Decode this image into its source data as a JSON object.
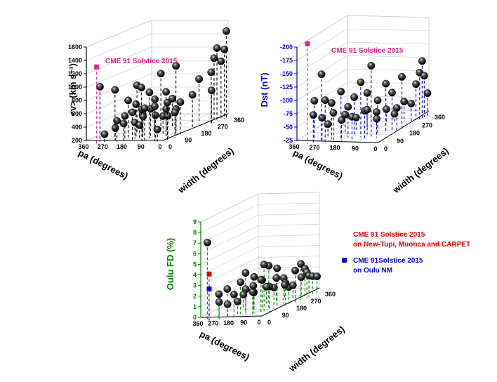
{
  "chart_data": [
    {
      "type": "scatter",
      "projection": "3d",
      "xlabel": "pa (degrees)",
      "ylabel": "width (degrees)",
      "zlabel": "<v> (km s⁻¹)",
      "zlabel_color": "#000000",
      "xlim": [
        0,
        360
      ],
      "ylim": [
        0,
        360
      ],
      "zlim": [
        200,
        1600
      ],
      "xticks": [
        "0",
        "90",
        "180",
        "270",
        "360"
      ],
      "yticks": [
        "0",
        "90",
        "180",
        "270",
        "360"
      ],
      "zticks": [
        "200",
        "400",
        "600",
        "800",
        "1000",
        "1200",
        "1400",
        "1600"
      ],
      "tick_color": "#000000",
      "drop_color": "#000000",
      "grid": true,
      "series": [
        {
          "marker": "sphere",
          "color": "#111111",
          "points": [
            [
              300,
              30,
              260
            ],
            [
              275,
              60,
              320
            ],
            [
              250,
              40,
              450
            ],
            [
              230,
              60,
              500
            ],
            [
              210,
              30,
              420
            ],
            [
              190,
              55,
              560
            ],
            [
              240,
              90,
              700
            ],
            [
              220,
              110,
              620
            ],
            [
              200,
              80,
              380
            ],
            [
              180,
              100,
              480
            ],
            [
              160,
              120,
              540
            ],
            [
              170,
              70,
              350
            ],
            [
              150,
              60,
              600
            ],
            [
              140,
              90,
              820
            ],
            [
              120,
              40,
              640
            ],
            [
              110,
              130,
              420
            ],
            [
              95,
              70,
              500
            ],
            [
              80,
              50,
              760
            ],
            [
              70,
              100,
              560
            ],
            [
              60,
              40,
              320
            ],
            [
              45,
              80,
              480
            ],
            [
              30,
              60,
              700
            ],
            [
              20,
              120,
              640
            ],
            [
              250,
              150,
              860
            ],
            [
              230,
              160,
              380
            ],
            [
              200,
              190,
              500
            ],
            [
              180,
              200,
              980
            ],
            [
              130,
              170,
              740
            ],
            [
              100,
              190,
              460
            ],
            [
              75,
              160,
              1140
            ],
            [
              40,
              210,
              650
            ],
            [
              280,
              210,
              760
            ],
            [
              160,
              240,
              560
            ],
            [
              60,
              270,
              820
            ],
            [
              20,
              290,
              900
            ],
            [
              15,
              300,
              1100
            ],
            [
              10,
              310,
              1240
            ],
            [
              8,
              330,
              1020
            ],
            [
              5,
              345,
              1180
            ],
            [
              330,
              40,
              960
            ],
            [
              285,
              70,
              880
            ],
            [
              20,
              90,
              520
            ],
            [
              10,
              280,
              640
            ],
            [
              0,
              350,
              1450
            ]
          ]
        },
        {
          "name": "CME 91 Solstice 2015",
          "marker": "square",
          "color": "#e0218a",
          "points": [
            [
              320,
              10,
              1290
            ]
          ]
        }
      ],
      "annotations": [
        {
          "text": "CME 91 Solstice 2015",
          "color": "#e0218a"
        }
      ]
    },
    {
      "type": "scatter",
      "projection": "3d",
      "xlabel": "pa (degrees)",
      "ylabel": "width (degrees)",
      "zlabel": "Dst (nT)",
      "zlabel_color": "#0000cc",
      "xlim": [
        0,
        360
      ],
      "ylim": [
        0,
        360
      ],
      "zlim": [
        -25,
        -200
      ],
      "xticks": [
        "0",
        "90",
        "180",
        "270",
        "360"
      ],
      "yticks": [
        "0",
        "90",
        "180",
        "270",
        "360"
      ],
      "zticks": [
        "-25",
        "-50",
        "-75",
        "-100",
        "-125",
        "-150",
        "-175",
        "-200"
      ],
      "tick_color": "#0000cc",
      "drop_color": "#0000cc",
      "grid": true,
      "series": [
        {
          "marker": "sphere",
          "color": "#111111",
          "points": [
            [
              300,
              20,
              -70
            ],
            [
              280,
              50,
              -60
            ],
            [
              260,
              40,
              -95
            ],
            [
              250,
              70,
              -85
            ],
            [
              230,
              50,
              -70
            ],
            [
              215,
              80,
              -105
            ],
            [
              200,
              60,
              -55
            ],
            [
              190,
              90,
              -75
            ],
            [
              175,
              110,
              -90
            ],
            [
              160,
              70,
              -60
            ],
            [
              140,
              100,
              -120
            ],
            [
              130,
              130,
              -95
            ],
            [
              110,
              80,
              -70
            ],
            [
              100,
              110,
              -150
            ],
            [
              90,
              140,
              -80
            ],
            [
              70,
              100,
              -65
            ],
            [
              60,
              150,
              -110
            ],
            [
              45,
              170,
              -90
            ],
            [
              30,
              180,
              -60
            ],
            [
              20,
              200,
              -115
            ],
            [
              240,
              150,
              -50
            ],
            [
              210,
              180,
              -40
            ],
            [
              180,
              210,
              -50
            ],
            [
              150,
              230,
              -30
            ],
            [
              120,
              250,
              -45
            ],
            [
              90,
              260,
              -35
            ],
            [
              60,
              280,
              -55
            ],
            [
              35,
              290,
              -50
            ],
            [
              20,
              300,
              -85
            ],
            [
              10,
              310,
              -105
            ],
            [
              5,
              320,
              -125
            ],
            [
              5,
              335,
              -95
            ],
            [
              0,
              350,
              -60
            ],
            [
              285,
              100,
              -40
            ],
            [
              320,
              60,
              -90
            ],
            [
              270,
              30,
              -145
            ]
          ]
        },
        {
          "name": "CME 91 Solstice 2015",
          "marker": "square",
          "color": "#e0218a",
          "points": [
            [
              320,
              10,
              -205
            ]
          ]
        }
      ],
      "annotations": [
        {
          "text": "CME 91 Solstice 2015",
          "color": "#e0218a"
        }
      ]
    },
    {
      "type": "scatter",
      "projection": "3d",
      "xlabel": "pa (degrees)",
      "ylabel": "width (degrees)",
      "zlabel": "Oulu FD (%)",
      "zlabel_color": "#008000",
      "xlim": [
        0,
        360
      ],
      "ylim": [
        0,
        360
      ],
      "zlim": [
        0,
        9
      ],
      "xticks": [
        "0",
        "90",
        "180",
        "270",
        "360"
      ],
      "yticks": [
        "0",
        "90",
        "180",
        "270",
        "360"
      ],
      "zticks": [
        "0",
        "1",
        "2",
        "3",
        "4",
        "5",
        "6",
        "7",
        "8",
        "9"
      ],
      "tick_color": "#008000",
      "drop_color": "#008000",
      "grid": true,
      "series": [
        {
          "marker": "sphere",
          "color": "#111111",
          "points": [
            [
              340,
              20,
              6.9
            ],
            [
              300,
              50,
              1.8
            ],
            [
              280,
              30,
              1.2
            ],
            [
              260,
              60,
              2.2
            ],
            [
              240,
              40,
              0.9
            ],
            [
              230,
              70,
              1.6
            ],
            [
              210,
              90,
              2.6
            ],
            [
              200,
              60,
              1.0
            ],
            [
              190,
              100,
              3.4
            ],
            [
              170,
              80,
              2.0
            ],
            [
              160,
              120,
              1.4
            ],
            [
              140,
              100,
              3.0
            ],
            [
              130,
              140,
              2.4
            ],
            [
              120,
              70,
              1.8
            ],
            [
              110,
              160,
              3.6
            ],
            [
              100,
              120,
              4.0
            ],
            [
              90,
              90,
              2.8
            ],
            [
              80,
              180,
              3.2
            ],
            [
              70,
              150,
              1.6
            ],
            [
              60,
              110,
              2.0
            ],
            [
              50,
              190,
              2.2
            ],
            [
              40,
              210,
              1.2
            ],
            [
              30,
              180,
              1.8
            ],
            [
              20,
              230,
              2.6
            ],
            [
              15,
              260,
              3.0
            ],
            [
              10,
              280,
              2.4
            ],
            [
              8,
              290,
              2.0
            ],
            [
              5,
              300,
              1.6
            ],
            [
              3,
              320,
              1.4
            ],
            [
              0,
              345,
              1.2
            ],
            [
              250,
              150,
              1.0
            ],
            [
              220,
              180,
              1.6
            ],
            [
              180,
              220,
              1.2
            ],
            [
              150,
              250,
              1.8
            ],
            [
              120,
              270,
              1.0
            ],
            [
              90,
              290,
              0.8
            ],
            [
              60,
              310,
              1.4
            ]
          ]
        },
        {
          "name": "CME 91 Solstice 2015 on New-Tupi, Muonca and CARPET",
          "marker": "square",
          "color": "#e00000",
          "points": [
            [
              320,
              10,
              4.0
            ]
          ]
        },
        {
          "name": "CME 91Solstice 2015 on Oulu NM",
          "marker": "square",
          "color": "#0000e0",
          "points": [
            [
              320,
              10,
              2.6
            ]
          ]
        }
      ],
      "annotations": []
    }
  ],
  "legend": [
    {
      "line1": "CME 91 Solstice 2015",
      "line2": "on New-Tupi, Muonca and CARPET",
      "color": "#e00000"
    },
    {
      "line1": "CME 91Solstice 2015",
      "line2": "on Oulu NM",
      "color": "#0000e0"
    }
  ]
}
